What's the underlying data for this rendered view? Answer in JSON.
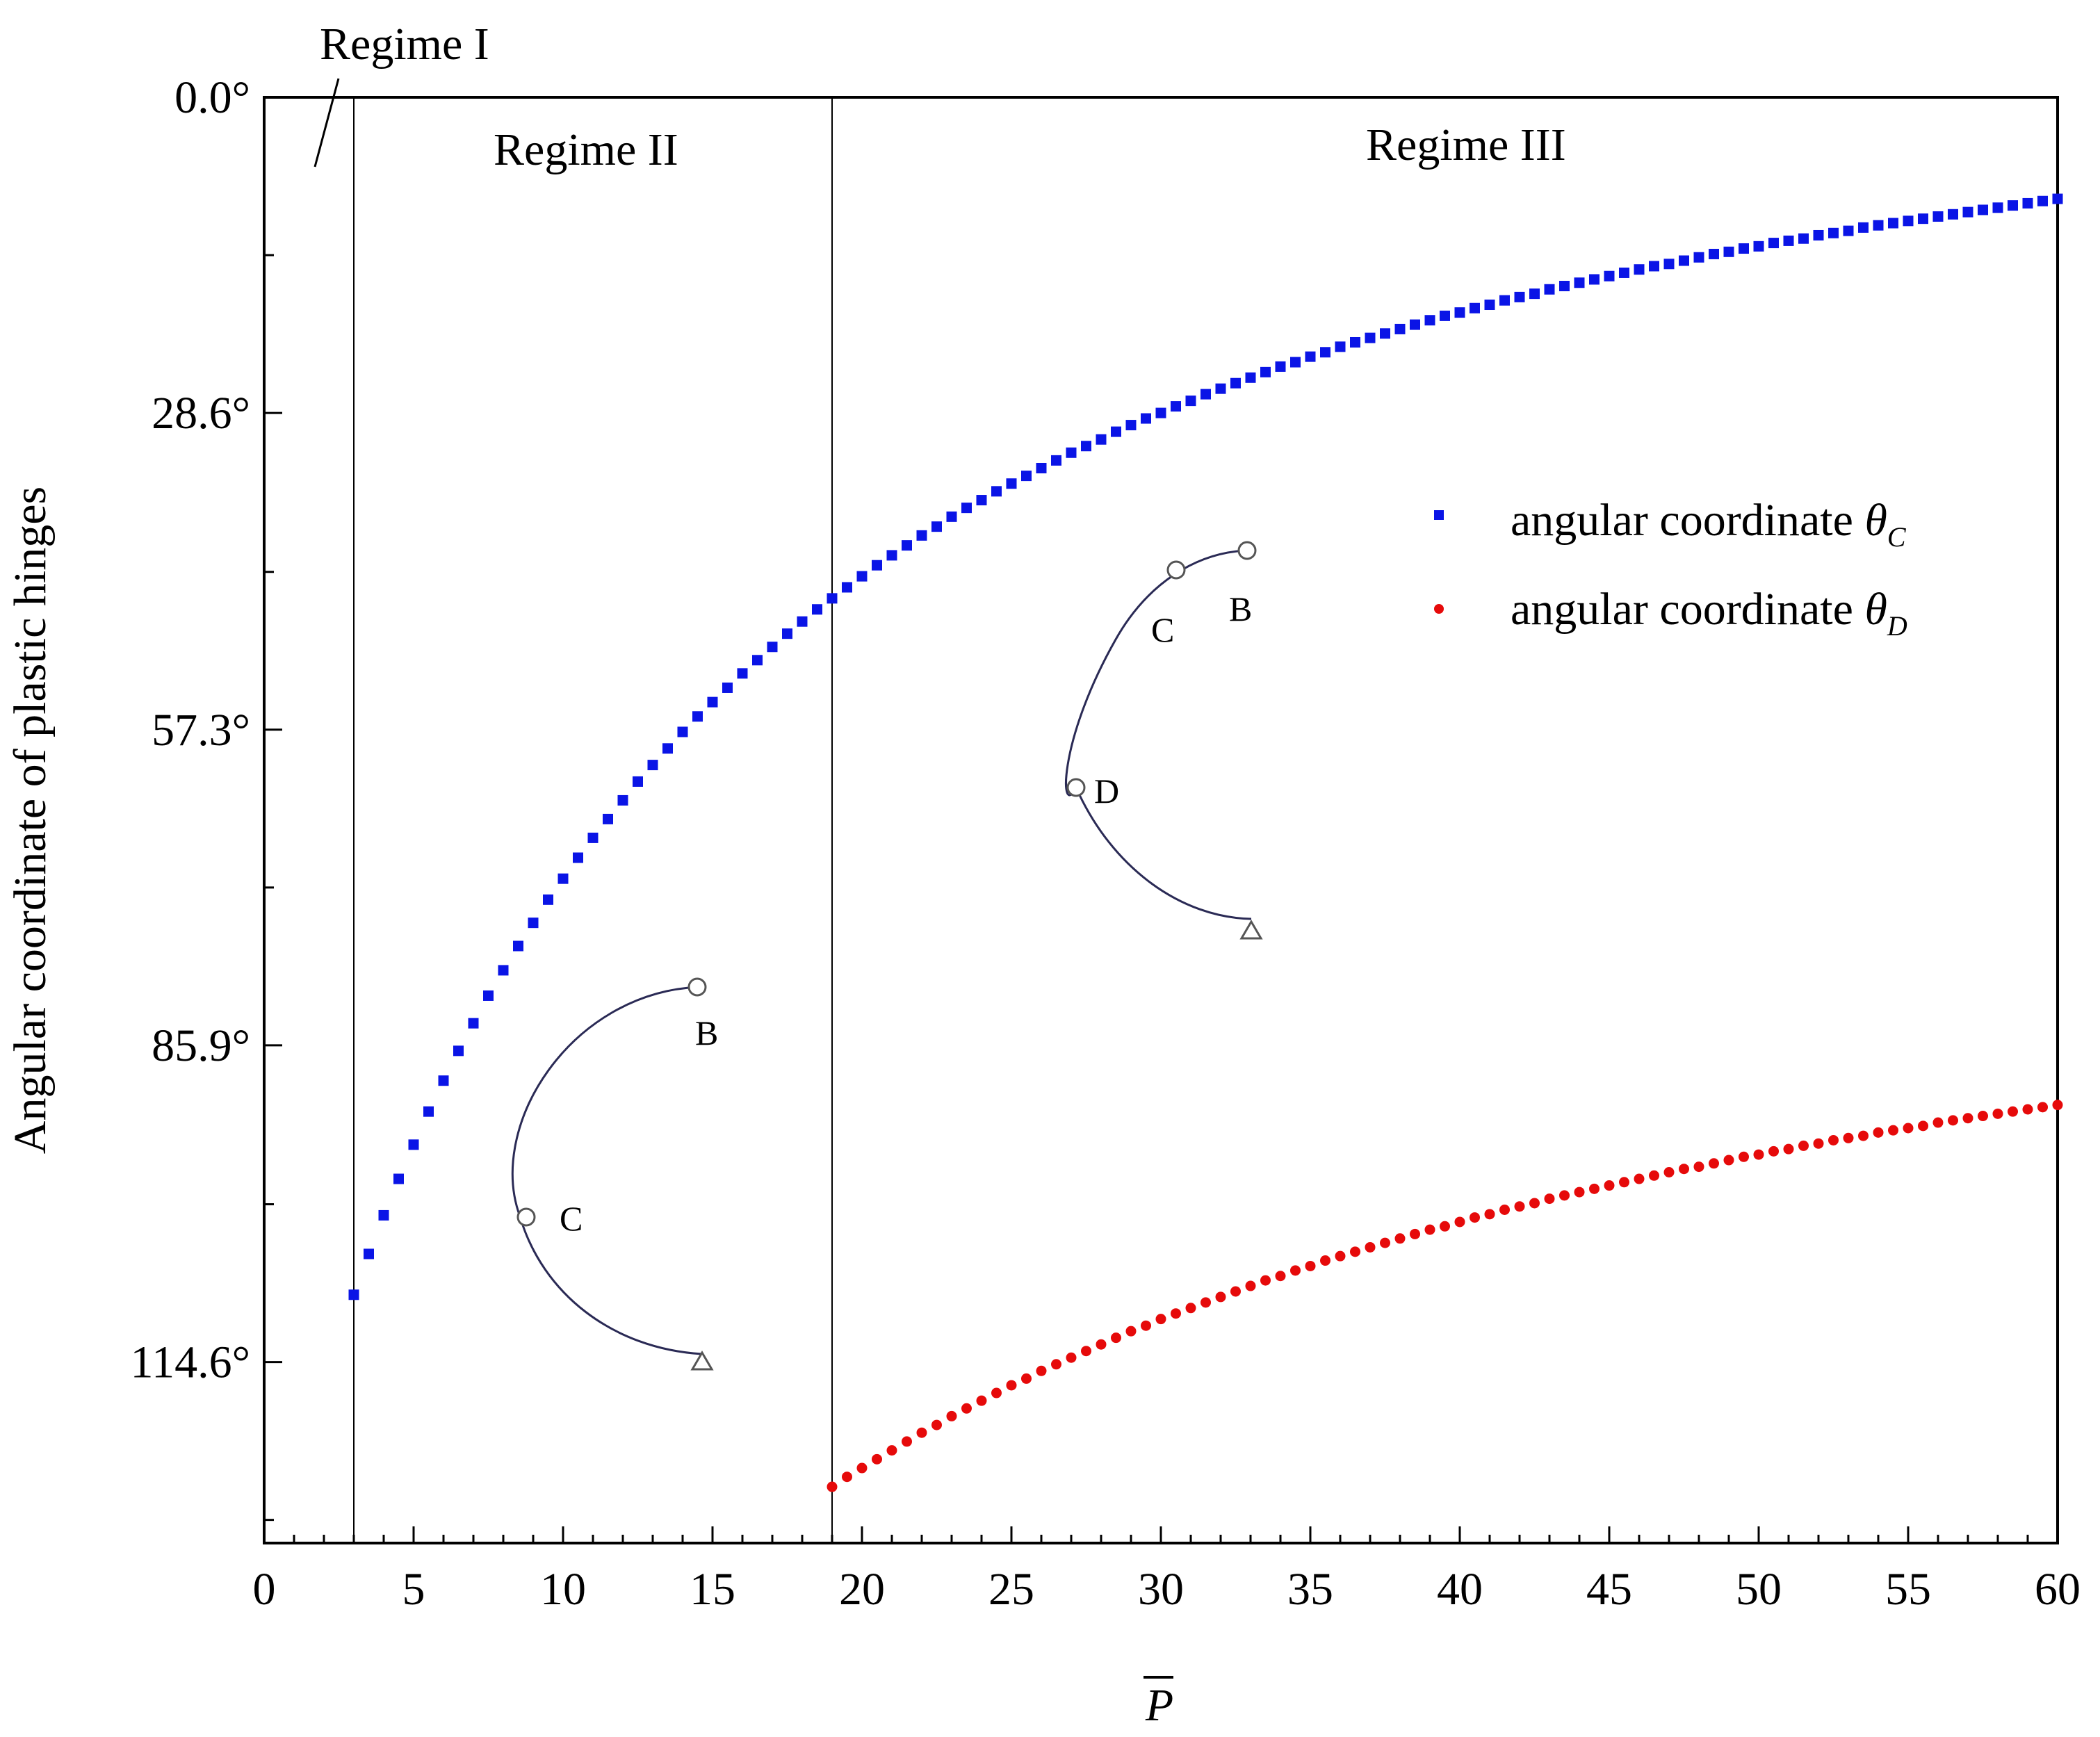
{
  "chart_data": {
    "type": "scatter",
    "xlabel": "P",
    "xlabel_overline": true,
    "ylabel": "Angular coordinate of plastic hinges",
    "xlim": [
      0,
      60
    ],
    "ylim": [
      0.0,
      131.0
    ],
    "y_axis_inverted": true,
    "x_major_ticks": [
      0,
      5,
      10,
      15,
      20,
      25,
      30,
      35,
      40,
      45,
      50,
      55,
      60
    ],
    "x_minor_tick_step": 1,
    "y_major_ticks": [
      0.0,
      28.6,
      57.3,
      85.9,
      114.6
    ],
    "y_tick_labels": [
      "0.0°",
      "28.6°",
      "57.3°",
      "85.9°",
      "114.6°"
    ],
    "y_minor_ticks": [
      14.3,
      43.0,
      71.6,
      100.3,
      128.9
    ],
    "grid": false,
    "legend_position": "right-middle",
    "regime_boundaries": [
      3.0,
      19.0
    ],
    "regime_labels": [
      "Regime I",
      "Regime II",
      "Regime III"
    ],
    "series": [
      {
        "name": "angular coordinate θC",
        "legend_text": "angular coordinate ",
        "symbol": "θ",
        "subscript": "C",
        "color": "#0a14e6",
        "marker": "square",
        "x": [
          3.0,
          3.5,
          4.0,
          4.5,
          5.0,
          5.5,
          6.0,
          6.5,
          7.0,
          7.5,
          8.0,
          8.5,
          9.0,
          9.5,
          10.0,
          10.5,
          11.0,
          11.5,
          12.0,
          12.5,
          13.0,
          13.5,
          14.0,
          14.5,
          15.0,
          15.5,
          16.0,
          16.5,
          17.0,
          17.5,
          18.0,
          18.5,
          19.0,
          19.5,
          20.0,
          20.5,
          21.0,
          21.5,
          22.0,
          22.5,
          23.0,
          23.5,
          24.0,
          24.5,
          25.0,
          25.5,
          26.0,
          26.5,
          27.0,
          27.5,
          28.0,
          28.5,
          29.0,
          29.5,
          30.0,
          30.5,
          31.0,
          31.5,
          32.0,
          32.5,
          33.0,
          33.5,
          34.0,
          34.5,
          35.0,
          35.5,
          36.0,
          36.5,
          37.0,
          37.5,
          38.0,
          38.5,
          39.0,
          39.5,
          40.0,
          40.5,
          41.0,
          41.5,
          42.0,
          42.5,
          43.0,
          43.5,
          44.0,
          44.5,
          45.0,
          45.5,
          46.0,
          46.5,
          47.0,
          47.5,
          48.0,
          48.5,
          49.0,
          49.5,
          50.0,
          50.5,
          51.0,
          51.5,
          52.0,
          52.5,
          53.0,
          53.5,
          54.0,
          54.5,
          55.0,
          55.5,
          56.0,
          56.5,
          57.0,
          57.5,
          58.0,
          58.5,
          59.0,
          59.5,
          60.0
        ],
        "y": [
          108.5,
          104.8,
          101.3,
          98.0,
          94.9,
          91.9,
          89.1,
          86.4,
          83.9,
          81.4,
          79.1,
          76.9,
          74.8,
          72.7,
          70.8,
          68.9,
          67.1,
          65.4,
          63.7,
          62.0,
          60.5,
          59.0,
          57.5,
          56.1,
          54.8,
          53.5,
          52.2,
          51.0,
          49.8,
          48.6,
          47.5,
          46.4,
          45.4,
          44.4,
          43.4,
          42.4,
          41.5,
          40.6,
          39.7,
          38.9,
          38.0,
          37.2,
          36.5,
          35.7,
          35.0,
          34.3,
          33.6,
          32.9,
          32.2,
          31.6,
          31.0,
          30.3,
          29.7,
          29.1,
          28.6,
          28.0,
          27.5,
          26.9,
          26.4,
          25.9,
          25.4,
          24.9,
          24.4,
          24.0,
          23.5,
          23.1,
          22.6,
          22.2,
          21.8,
          21.4,
          21.0,
          20.6,
          20.2,
          19.8,
          19.5,
          19.1,
          18.8,
          18.4,
          18.1,
          17.8,
          17.4,
          17.1,
          16.8,
          16.5,
          16.2,
          15.9,
          15.6,
          15.3,
          15.1,
          14.8,
          14.5,
          14.2,
          14.0,
          13.7,
          13.5,
          13.2,
          13.0,
          12.8,
          12.5,
          12.3,
          12.1,
          11.8,
          11.6,
          11.4,
          11.2,
          11.0,
          10.8,
          10.6,
          10.4,
          10.2,
          10.0,
          9.8,
          9.6,
          9.4,
          9.2
        ]
      },
      {
        "name": "angular coordinate θD",
        "legend_text": "angular coordinate ",
        "symbol": "θ",
        "subscript": "D",
        "color": "#e60a0a",
        "marker": "circle",
        "x": [
          19.0,
          19.5,
          20.0,
          20.5,
          21.0,
          21.5,
          22.0,
          22.5,
          23.0,
          23.5,
          24.0,
          24.5,
          25.0,
          25.5,
          26.0,
          26.5,
          27.0,
          27.5,
          28.0,
          28.5,
          29.0,
          29.5,
          30.0,
          30.5,
          31.0,
          31.5,
          32.0,
          32.5,
          33.0,
          33.5,
          34.0,
          34.5,
          35.0,
          35.5,
          36.0,
          36.5,
          37.0,
          37.5,
          38.0,
          38.5,
          39.0,
          39.5,
          40.0,
          40.5,
          41.0,
          41.5,
          42.0,
          42.5,
          43.0,
          43.5,
          44.0,
          44.5,
          45.0,
          45.5,
          46.0,
          46.5,
          47.0,
          47.5,
          48.0,
          48.5,
          49.0,
          49.5,
          50.0,
          50.5,
          51.0,
          51.5,
          52.0,
          52.5,
          53.0,
          53.5,
          54.0,
          54.5,
          55.0,
          55.5,
          56.0,
          56.5,
          57.0,
          57.5,
          58.0,
          58.5,
          59.0,
          59.5,
          60.0
        ],
        "y": [
          125.9,
          125.0,
          124.2,
          123.4,
          122.6,
          121.8,
          121.0,
          120.3,
          119.5,
          118.8,
          118.1,
          117.4,
          116.7,
          116.1,
          115.4,
          114.8,
          114.2,
          113.6,
          113.0,
          112.4,
          111.8,
          111.3,
          110.7,
          110.2,
          109.7,
          109.2,
          108.7,
          108.2,
          107.7,
          107.2,
          106.8,
          106.3,
          105.9,
          105.4,
          105.0,
          104.6,
          104.2,
          103.8,
          103.4,
          103.0,
          102.6,
          102.3,
          101.9,
          101.5,
          101.2,
          100.8,
          100.5,
          100.2,
          99.8,
          99.5,
          99.2,
          98.9,
          98.6,
          98.3,
          98.0,
          97.7,
          97.4,
          97.1,
          96.9,
          96.6,
          96.3,
          96.0,
          95.8,
          95.5,
          95.3,
          95.0,
          94.8,
          94.5,
          94.3,
          94.1,
          93.8,
          93.6,
          93.4,
          93.2,
          92.9,
          92.7,
          92.5,
          92.3,
          92.1,
          91.9,
          91.7,
          91.5,
          91.3
        ]
      }
    ],
    "insets": [
      {
        "hinges": [
          {
            "label": "B"
          },
          {
            "label": "C"
          }
        ]
      },
      {
        "hinges": [
          {
            "label": "B"
          },
          {
            "label": "C"
          },
          {
            "label": "D"
          }
        ]
      }
    ]
  },
  "colors": {
    "axis": "#000000",
    "inset_arc": "#2a2a55"
  }
}
